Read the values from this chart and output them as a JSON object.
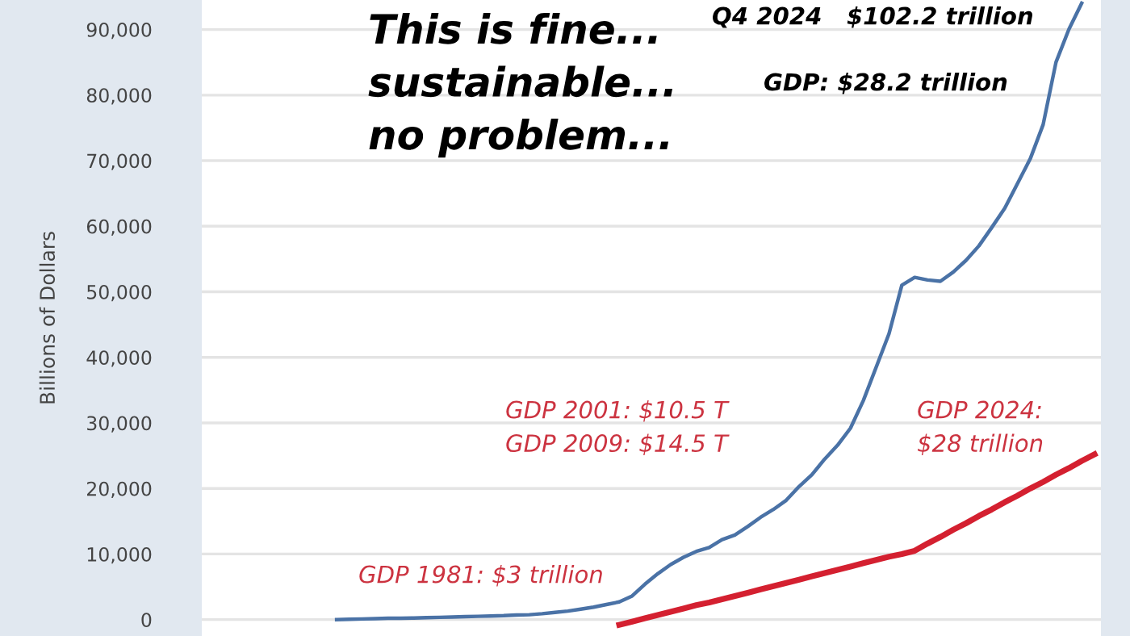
{
  "chart_data": {
    "type": "line",
    "ylabel": "Billions of Dollars",
    "categories": [
      null,
      null,
      null,
      null,
      null,
      null,
      null,
      null,
      null,
      null,
      null,
      null,
      null,
      null,
      null,
      null,
      null,
      null,
      null,
      null,
      null,
      null,
      null,
      null,
      null,
      null,
      null,
      null,
      null,
      null,
      null,
      null,
      null,
      null,
      null,
      null,
      null,
      null,
      null,
      null,
      null,
      null,
      null,
      null,
      null,
      null,
      null,
      null,
      null,
      null,
      null,
      null,
      null,
      null,
      null,
      null,
      null,
      null,
      null,
      null,
      null,
      null,
      null,
      null,
      null,
      null,
      null,
      null,
      null,
      null
    ],
    "series": [
      {
        "color": "#4a72a6",
        "values": [
          null,
          null,
          null,
          null,
          null,
          null,
          null,
          null,
          null,
          null,
          0,
          50,
          100,
          150,
          200,
          200,
          250,
          300,
          350,
          400,
          450,
          500,
          550,
          600,
          700,
          750,
          900,
          1100,
          1300,
          1600,
          1900,
          2300,
          2700,
          3600,
          5400,
          7000,
          8400,
          9500,
          10400,
          11000,
          12200,
          12900,
          14200,
          15600,
          16800,
          18200,
          20300,
          22100,
          24500,
          26600,
          29200,
          33400,
          38500,
          43600,
          51000,
          52200,
          51800,
          51600,
          53000,
          54800,
          57000,
          59800,
          62700,
          66500,
          70300,
          75500,
          85000,
          90000,
          94000,
          null
        ]
      },
      {
        "color": "#d42030",
        "values": [
          null,
          null,
          null,
          null,
          null,
          null,
          null,
          null,
          null,
          null,
          null,
          null,
          null,
          null,
          null,
          null,
          null,
          null,
          null,
          null,
          null,
          null,
          null,
          null,
          null,
          null,
          null,
          null,
          null,
          null,
          null,
          null,
          -800,
          -300,
          200,
          700,
          1200,
          1700,
          2200,
          2600,
          3100,
          3600,
          4100,
          4600,
          5100,
          5600,
          6100,
          6600,
          7100,
          7600,
          8100,
          8600,
          9100,
          9600,
          10000,
          10500,
          11600,
          12600,
          13700,
          14700,
          15800,
          16800,
          17900,
          18900,
          20000,
          21000,
          22100,
          23100,
          24200,
          25200
        ]
      }
    ],
    "ylim": [
      -2500,
      94500
    ],
    "yticks": [
      {
        "value": 0,
        "label": "0"
      },
      {
        "value": 10000,
        "label": "10,000"
      },
      {
        "value": 20000,
        "label": "20,000"
      },
      {
        "value": 30000,
        "label": "30,000"
      },
      {
        "value": 40000,
        "label": "40,000"
      },
      {
        "value": 50000,
        "label": "50,000"
      },
      {
        "value": 60000,
        "label": "60,000"
      },
      {
        "value": 70000,
        "label": "70,000"
      },
      {
        "value": 80000,
        "label": "80,000"
      },
      {
        "value": 90000,
        "label": "90,000"
      }
    ],
    "grid": "y",
    "tick_labels": "y",
    "annotations": [
      "This is fine...\nsustainable...\nno problem...",
      "Q4 2024   $102.2 trillion",
      "GDP: $28.2 trillion",
      "GDP 2001: $10.5 T\nGDP 2009: $14.5 T",
      "GDP 2024:\n$28 trillion",
      "GDP 1981: $3 trillion"
    ]
  }
}
